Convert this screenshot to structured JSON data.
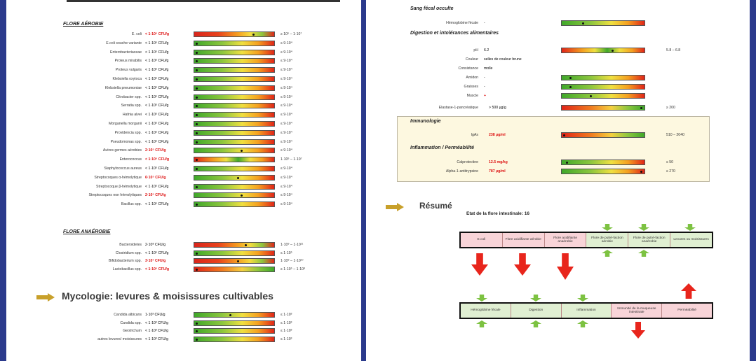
{
  "left": {
    "aerobic_title": "FLORE AÉROBIE",
    "aerobic": [
      {
        "name": "E. coli",
        "value": "< 1·10⁵ CFU/g",
        "hi": true,
        "marker": 0.75,
        "grad": "g-big",
        "ref": "≥ 10⁶ – 1·10⁷"
      },
      {
        "name": "E.coli souche variante",
        "value": "< 1·10⁵ CFU/g",
        "hi": false,
        "marker": 0.02,
        "grad": "g-good",
        "ref": "≤ 9·10⁴"
      },
      {
        "name": "Enterobacteriaceae",
        "value": "< 1·10⁵ CFU/g",
        "hi": false,
        "marker": 0.02,
        "grad": "g-good",
        "ref": "≤ 9·10⁴"
      },
      {
        "name": "Proteus mirabilis",
        "value": "< 1·10⁵ CFU/g",
        "hi": false,
        "marker": 0.02,
        "grad": "g-good",
        "ref": "≤ 9·10⁴"
      },
      {
        "name": "Proteus vulgaris",
        "value": "< 1·10⁵ CFU/g",
        "hi": false,
        "marker": 0.02,
        "grad": "g-good",
        "ref": "≤ 9·10⁴"
      },
      {
        "name": "Klebsiella oxytoca",
        "value": "< 1·10⁵ CFU/g",
        "hi": false,
        "marker": 0.02,
        "grad": "g-good",
        "ref": "≤ 9·10⁴"
      },
      {
        "name": "Klebsiella pneumoniae",
        "value": "< 1·10⁵ CFU/g",
        "hi": false,
        "marker": 0.02,
        "grad": "g-good",
        "ref": "≤ 9·10⁴"
      },
      {
        "name": "Citrobacter spp.",
        "value": "< 1·10⁵ CFU/g",
        "hi": false,
        "marker": 0.02,
        "grad": "g-good",
        "ref": "≤ 9·10⁴"
      },
      {
        "name": "Serratia spp.",
        "value": "< 1·10⁵ CFU/g",
        "hi": false,
        "marker": 0.02,
        "grad": "g-good",
        "ref": "≤ 9·10⁴"
      },
      {
        "name": "Hafnia alvei",
        "value": "< 1·10⁵ CFU/g",
        "hi": false,
        "marker": 0.02,
        "grad": "g-good",
        "ref": "≤ 9·10⁴"
      },
      {
        "name": "Morganella morganii",
        "value": "< 1·10⁵ CFU/g",
        "hi": false,
        "marker": 0.02,
        "grad": "g-good",
        "ref": "≤ 9·10⁴"
      },
      {
        "name": "Providencia spp.",
        "value": "< 1·10⁵ CFU/g",
        "hi": false,
        "marker": 0.02,
        "grad": "g-good",
        "ref": "≤ 9·10⁴"
      },
      {
        "name": "Pseudomonas spp.",
        "value": "< 1·10⁵ CFU/g",
        "hi": false,
        "marker": 0.02,
        "grad": "g-good",
        "ref": "≤ 9·10⁴"
      },
      {
        "name": "Autres germes aérobies",
        "value": "2·10⁵ CFU/g",
        "hi": true,
        "marker": 0.6,
        "grad": "g-good",
        "ref": "≤ 9·10⁴"
      },
      {
        "name": "Enterococcus",
        "value": "< 1·10⁵ CFU/g",
        "hi": true,
        "marker": 0.02,
        "grad": "g-mid",
        "ref": "1·10⁶ – 1·10⁷"
      },
      {
        "name": "Staphylococcus aureus",
        "value": "< 1·10⁵ CFU/g",
        "hi": false,
        "marker": 0.02,
        "grad": "g-good",
        "ref": "≤ 9·10⁴"
      },
      {
        "name": "Streptocoques α-hémolytique",
        "value": "6·10⁵ CFU/g",
        "hi": true,
        "marker": 0.55,
        "grad": "g-good",
        "ref": "≤ 9·10⁴"
      },
      {
        "name": "Streptocoque β-hémolytique",
        "value": "< 1·10⁵ CFU/g",
        "hi": false,
        "marker": 0.02,
        "grad": "g-good",
        "ref": "≤ 9·10⁴"
      },
      {
        "name": "Streptocoques non hémolytiques",
        "value": "2·10⁵ CFU/g",
        "hi": true,
        "marker": 0.6,
        "grad": "g-good",
        "ref": "≤ 9·10⁴"
      },
      {
        "name": "Bacillus spp.",
        "value": "< 1·10⁵ CFU/g",
        "hi": false,
        "marker": 0.02,
        "grad": "g-good",
        "ref": "≤ 9·10⁴"
      }
    ],
    "anaerobic_title": "FLORE ANAÉROBIE",
    "anaerobic": [
      {
        "name": "Bacteroidetes",
        "value": "2·10⁸ CFU/g",
        "hi": false,
        "marker": 0.65,
        "grad": "g-big",
        "ref": "1·10⁹ – 1·10¹¹"
      },
      {
        "name": "Clostridium spp.",
        "value": "< 1·10⁵ CFU/g",
        "hi": false,
        "marker": 0.02,
        "grad": "g-good",
        "ref": "≤ 1·10⁵"
      },
      {
        "name": "Bifidobacterium spp.",
        "value": "3·10⁷ CFU/g",
        "hi": true,
        "marker": 0.55,
        "grad": "g-big",
        "ref": "1·10⁹ – 1·10¹⁰"
      },
      {
        "name": "Lactobacillus spp.",
        "value": "< 1·10⁵ CFU/g",
        "hi": true,
        "marker": 0.02,
        "grad": "g-rev",
        "ref": "≥ 1·10⁵ – 1·10⁸"
      }
    ],
    "myco_title": "Mycologie: levures & moisissures cultivables",
    "myco": [
      {
        "name": "Candida albicans",
        "value": "1·10³ CFU/g",
        "hi": false,
        "marker": 0.45,
        "grad": "g-good",
        "ref": "≤ 1·10³"
      },
      {
        "name": "Candida spp.",
        "value": "< 1·10³ CFU/g",
        "hi": false,
        "marker": 0.02,
        "grad": "g-good",
        "ref": "≤ 1·10³"
      },
      {
        "name": "Geotrichum",
        "value": "< 1·10³ CFU/g",
        "hi": false,
        "marker": 0.02,
        "grad": "g-good",
        "ref": "≤ 1·10³"
      },
      {
        "name": "autres levures/ moisissures",
        "value": "< 1·10³ CFU/g",
        "hi": false,
        "marker": 0.02,
        "grad": "g-good",
        "ref": "≤ 1·10³"
      }
    ]
  },
  "right": {
    "blood_title": "Sang fécal occulte",
    "hemoglobin": {
      "name": "Hémoglobine fécale",
      "value": "-",
      "marker": 0.25
    },
    "digestion_title": "Digestion et intolérances alimentaires",
    "ph": {
      "name": "pH",
      "value": "6.2",
      "marker": 0.62,
      "ref": "5.8 – 6.8"
    },
    "couleur": {
      "name": "Couleur",
      "value": "selles de couleur brune"
    },
    "consistance": {
      "name": "Consistance",
      "value": "molle"
    },
    "amidon": {
      "name": "Amidon",
      "value": "-",
      "marker": 0.1
    },
    "graisses": {
      "name": "Graisses",
      "value": "-",
      "marker": 0.1
    },
    "muscle": {
      "name": "Muscle",
      "value": "+",
      "marker": 0.35
    },
    "elastase": {
      "name": "Elastase-1-pancréatique",
      "value": "> 500 µg/g",
      "marker": 0.98,
      "ref": "≥ 200"
    },
    "immuno_title": "Immunologie",
    "iga": {
      "name": "IgAs",
      "value": "238 µg/ml",
      "marker": 0.02,
      "ref": "510 – 2040"
    },
    "inflam_title": "Inflammation / Perméabilité",
    "calpro": {
      "name": "Calprotectine",
      "value": "12.5 mg/kg",
      "marker": 0.05,
      "ref": "≤ 50"
    },
    "aat": {
      "name": "Alpha-1-antitrypsine",
      "value": "787 µg/ml",
      "marker": 0.98,
      "ref": "≤ 270"
    },
    "resume_title": "Résumé",
    "flora_state": "Etat de la flore intestinale: 16",
    "top_flow": [
      "E.coli",
      "Flore acidifiante aérobie",
      "Flore acidifiante anaérobie",
      "Flore de putré-faction aérobie",
      "Flore de putré-faction anaérobie",
      "Levures ou moisissures"
    ],
    "bottom_flow": [
      "Hémoglobine fécale",
      "Digestion",
      "Inflammation",
      "Immunité de la muqueuse intestinale",
      "Perméabilité"
    ]
  }
}
